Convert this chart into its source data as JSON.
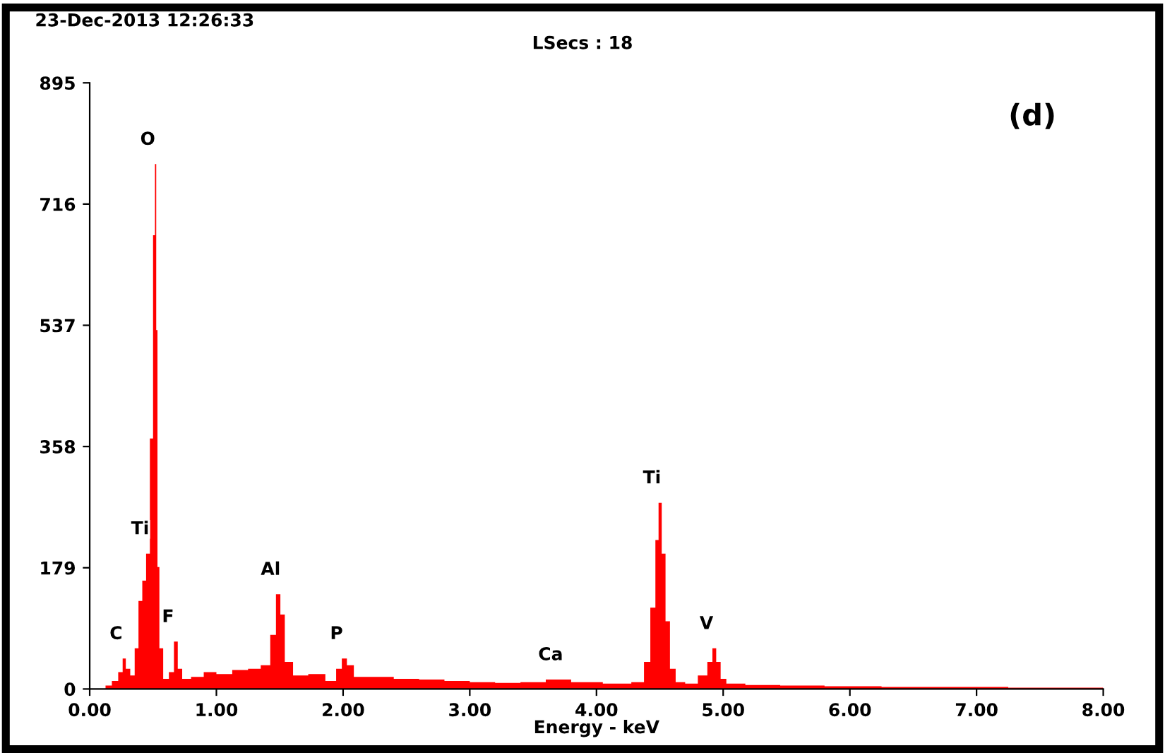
{
  "chart_data": {
    "type": "area",
    "title": "23-Dec-2013 12:26:33",
    "subtitle": "LSecs : 18",
    "xlabel": "Energy - keV",
    "x": [
      0.0,
      0.1,
      0.15,
      0.2,
      0.25,
      0.27,
      0.3,
      0.34,
      0.37,
      0.4,
      0.43,
      0.46,
      0.49,
      0.51,
      0.52,
      0.53,
      0.54,
      0.56,
      0.6,
      0.65,
      0.68,
      0.71,
      0.75,
      0.85,
      0.95,
      1.05,
      1.2,
      1.3,
      1.4,
      1.45,
      1.49,
      1.52,
      1.56,
      1.65,
      1.8,
      1.92,
      1.97,
      2.01,
      2.05,
      2.12,
      2.3,
      2.5,
      2.7,
      2.9,
      3.1,
      3.3,
      3.5,
      3.7,
      3.9,
      4.2,
      4.35,
      4.4,
      4.45,
      4.48,
      4.5,
      4.53,
      4.56,
      4.6,
      4.65,
      4.75,
      4.85,
      4.9,
      4.93,
      4.96,
      5.0,
      5.05,
      5.3,
      5.6,
      6.0,
      6.5,
      7.0,
      7.5,
      8.0
    ],
    "series": [
      {
        "color": "#ff0000",
        "values": [
          0,
          0,
          5,
          12,
          25,
          45,
          30,
          20,
          60,
          130,
          160,
          200,
          370,
          670,
          775,
          530,
          180,
          60,
          15,
          25,
          70,
          30,
          15,
          18,
          25,
          22,
          28,
          30,
          35,
          80,
          140,
          110,
          40,
          20,
          22,
          12,
          30,
          45,
          35,
          18,
          18,
          15,
          14,
          12,
          10,
          9,
          10,
          14,
          10,
          8,
          10,
          40,
          120,
          220,
          275,
          200,
          100,
          30,
          10,
          8,
          20,
          40,
          60,
          40,
          15,
          8,
          6,
          5,
          4,
          3,
          3,
          2,
          2
        ]
      }
    ],
    "xlim": [
      0,
      8.0
    ],
    "ylim": [
      0,
      895
    ],
    "xticks": [
      {
        "value": 0,
        "label": "0.00"
      },
      {
        "value": 1,
        "label": "1.00"
      },
      {
        "value": 2,
        "label": "2.00"
      },
      {
        "value": 3,
        "label": "3.00"
      },
      {
        "value": 4,
        "label": "4.00"
      },
      {
        "value": 5,
        "label": "5.00"
      },
      {
        "value": 6,
        "label": "6.00"
      },
      {
        "value": 7,
        "label": "7.00"
      },
      {
        "value": 8,
        "label": "8.00"
      }
    ],
    "yticks": [
      0,
      179,
      358,
      537,
      716,
      895
    ],
    "grid": false,
    "legend": false,
    "annotations": [
      "(d)",
      {
        "text": "O",
        "x": 0.52,
        "y": 775
      },
      {
        "text": "Ti",
        "x": 0.46,
        "y": 200
      },
      {
        "text": "C",
        "x": 0.27,
        "y": 45
      },
      {
        "text": "F",
        "x": 0.68,
        "y": 70
      },
      {
        "text": "Al",
        "x": 1.49,
        "y": 140
      },
      {
        "text": "P",
        "x": 2.01,
        "y": 45
      },
      {
        "text": "Ca",
        "x": 3.7,
        "y": 14
      },
      {
        "text": "Ti",
        "x": 4.5,
        "y": 275
      },
      {
        "text": "V",
        "x": 4.93,
        "y": 60
      }
    ]
  }
}
